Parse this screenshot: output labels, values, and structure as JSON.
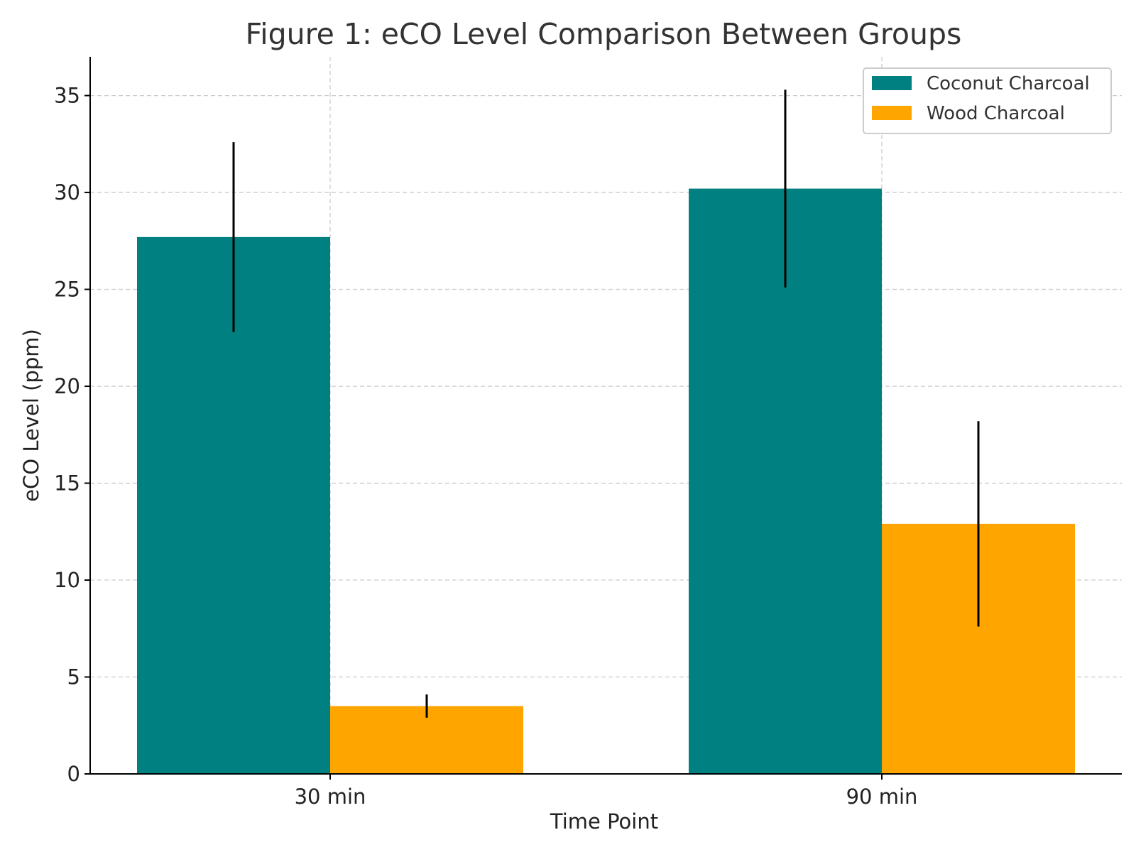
{
  "chart_data": {
    "type": "bar",
    "title": "Figure 1: eCO Level Comparison Between Groups",
    "xlabel": "Time Point",
    "ylabel": "eCO Level (ppm)",
    "categories": [
      "30 min",
      "90 min"
    ],
    "series": [
      {
        "name": "Coconut Charcoal",
        "color": "#008080",
        "values": [
          27.7,
          30.2
        ],
        "error": [
          4.9,
          5.1
        ]
      },
      {
        "name": "Wood Charcoal",
        "color": "#FFA500",
        "values": [
          3.5,
          12.9
        ],
        "error": [
          0.6,
          5.3
        ]
      }
    ],
    "ylim": [
      0,
      37
    ],
    "yticks": [
      0,
      5,
      10,
      15,
      20,
      25,
      30,
      35
    ],
    "grid": true,
    "legend": "top-right"
  }
}
